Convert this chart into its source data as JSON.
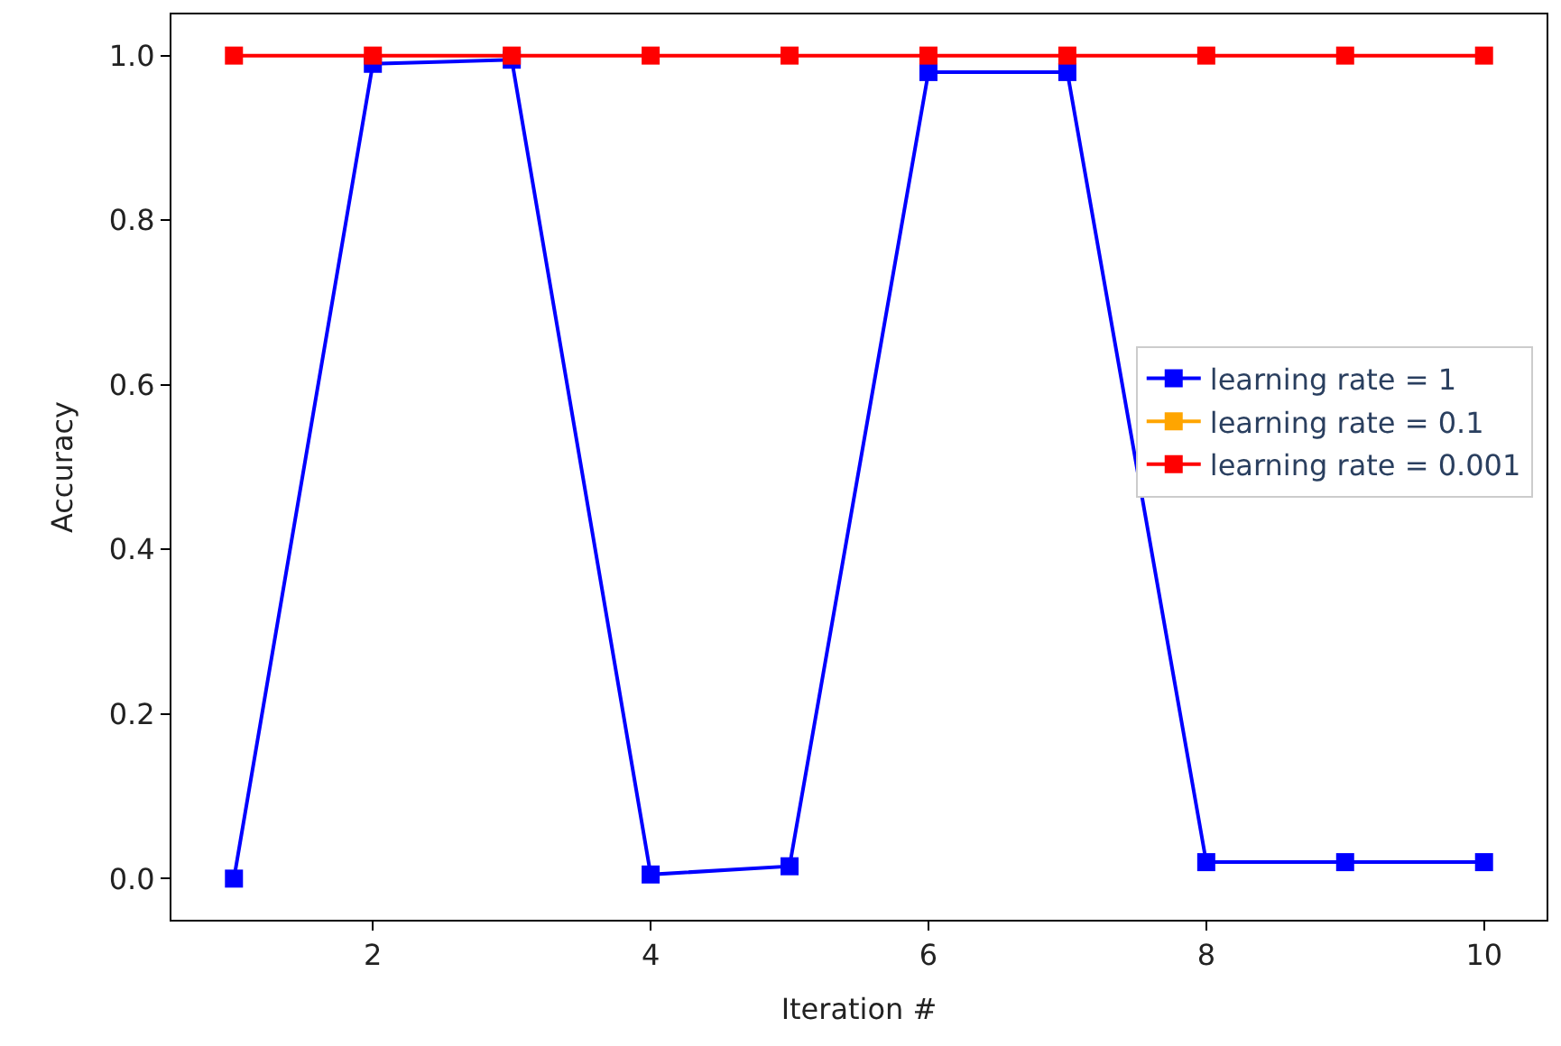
{
  "chart_data": {
    "type": "line",
    "xlabel": "Iteration #",
    "ylabel": "Accuracy",
    "x": [
      1,
      2,
      3,
      4,
      5,
      6,
      7,
      8,
      9,
      10
    ],
    "series": [
      {
        "name": "learning rate = 1",
        "color": "#0000ff",
        "values": [
          0.0,
          0.99,
          0.995,
          0.005,
          0.015,
          0.98,
          0.98,
          0.02,
          0.02,
          0.02
        ]
      },
      {
        "name": "learning rate = 0.1",
        "color": "#ffa500",
        "values": [
          null,
          null,
          null,
          null,
          null,
          null,
          null,
          null,
          null,
          null
        ]
      },
      {
        "name": "learning rate = 0.001",
        "color": "#ff0000",
        "values": [
          1.0,
          1.0,
          1.0,
          1.0,
          1.0,
          1.0,
          1.0,
          1.0,
          1.0,
          1.0
        ]
      }
    ],
    "xlim": [
      0.55,
      10.45
    ],
    "xticks": [
      2,
      4,
      6,
      8,
      10
    ],
    "ylim": [
      -0.05,
      1.05
    ],
    "yticks": [
      {
        "value": 0,
        "label": "0.0"
      },
      {
        "value": 0.2,
        "label": "0.2"
      },
      {
        "value": 0.4,
        "label": "0.4"
      },
      {
        "value": 0.6,
        "label": "0.6"
      },
      {
        "value": 0.8,
        "label": "0.8"
      },
      {
        "value": 1,
        "label": "1.0"
      }
    ],
    "marker": "square",
    "line_style": "solid",
    "legend": "right"
  }
}
